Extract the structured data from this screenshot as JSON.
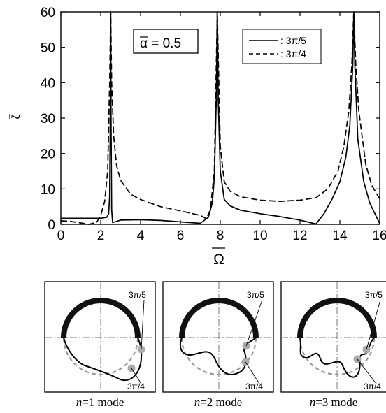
{
  "chart_data": {
    "type": "line",
    "title": "",
    "parameter_label": "α = 0.5",
    "xlabel": "Ω",
    "ylabel": "ζ",
    "xlim": [
      0,
      16
    ],
    "ylim": [
      0,
      60
    ],
    "xticks": [
      0,
      2,
      4,
      6,
      8,
      10,
      12,
      14,
      16
    ],
    "yticks": [
      0,
      10,
      20,
      30,
      40,
      50,
      60
    ],
    "grid": false,
    "legend_position": "top-right",
    "resonances": [
      2.5,
      7.85,
      14.7
    ],
    "series": [
      {
        "name": ": 3π/5",
        "style": "solid",
        "x": [
          0,
          1,
          2,
          2.3,
          2.4,
          2.45,
          2.48,
          2.5,
          2.52,
          2.55,
          2.6,
          3,
          4,
          5,
          6,
          7,
          7.4,
          7.6,
          7.7,
          7.8,
          7.85,
          7.9,
          8.0,
          8.2,
          8.5,
          9,
          10,
          11,
          12,
          12.8,
          13.2,
          13.6,
          14.0,
          14.3,
          14.5,
          14.65,
          14.7,
          14.75,
          14.9,
          15.2,
          15.5,
          16
        ],
        "y": [
          1.7,
          1.7,
          1.7,
          2.0,
          3.0,
          8,
          30,
          60,
          30,
          4,
          0.5,
          1.2,
          1.3,
          1.1,
          0.7,
          0.3,
          2,
          6,
          13,
          35,
          60,
          35,
          15,
          7,
          5.2,
          4,
          3,
          2.2,
          1.2,
          0.1,
          3,
          7,
          12,
          19,
          28,
          45,
          60,
          45,
          24,
          12,
          6,
          0.2
        ]
      },
      {
        "name": ": 3π/4",
        "style": "dashed",
        "x": [
          0,
          0.5,
          1.0,
          1.4,
          1.8,
          2.0,
          2.2,
          2.35,
          2.45,
          2.5,
          2.55,
          2.65,
          2.8,
          3,
          3.5,
          4,
          5,
          6,
          7,
          7.3,
          7.5,
          7.7,
          7.85,
          8.0,
          8.2,
          8.5,
          9,
          10,
          11,
          12,
          12.8,
          13.4,
          13.9,
          14.2,
          14.45,
          14.6,
          14.7,
          14.8,
          14.95,
          15.3,
          15.6,
          16
        ],
        "y": [
          1.0,
          0.8,
          0.4,
          0,
          0.6,
          2.5,
          6.5,
          15,
          40,
          60,
          40,
          25,
          16.5,
          12.4,
          8.5,
          7,
          5,
          3.8,
          2.5,
          1.6,
          4,
          15,
          60,
          22,
          12,
          9.3,
          7.8,
          6.8,
          6.5,
          6.8,
          7.5,
          10,
          15,
          22,
          32,
          45,
          60,
          45,
          32,
          17,
          11,
          7.2
        ]
      }
    ]
  },
  "legend": [
    {
      "label": ": 3π/5",
      "style": "solid"
    },
    {
      "label": ": 3π/4",
      "style": "dashed"
    }
  ],
  "modes": [
    {
      "caption_n": "n",
      "caption_rest": "=1 mode",
      "label_a": "3π/5",
      "label_b": "3π/4"
    },
    {
      "caption_n": "n",
      "caption_rest": "=2 mode",
      "label_a": "3π/5",
      "label_b": "3π/4"
    },
    {
      "caption_n": "n",
      "caption_rest": "=3 mode",
      "label_a": "3π/5",
      "label_b": "3π/4"
    }
  ]
}
